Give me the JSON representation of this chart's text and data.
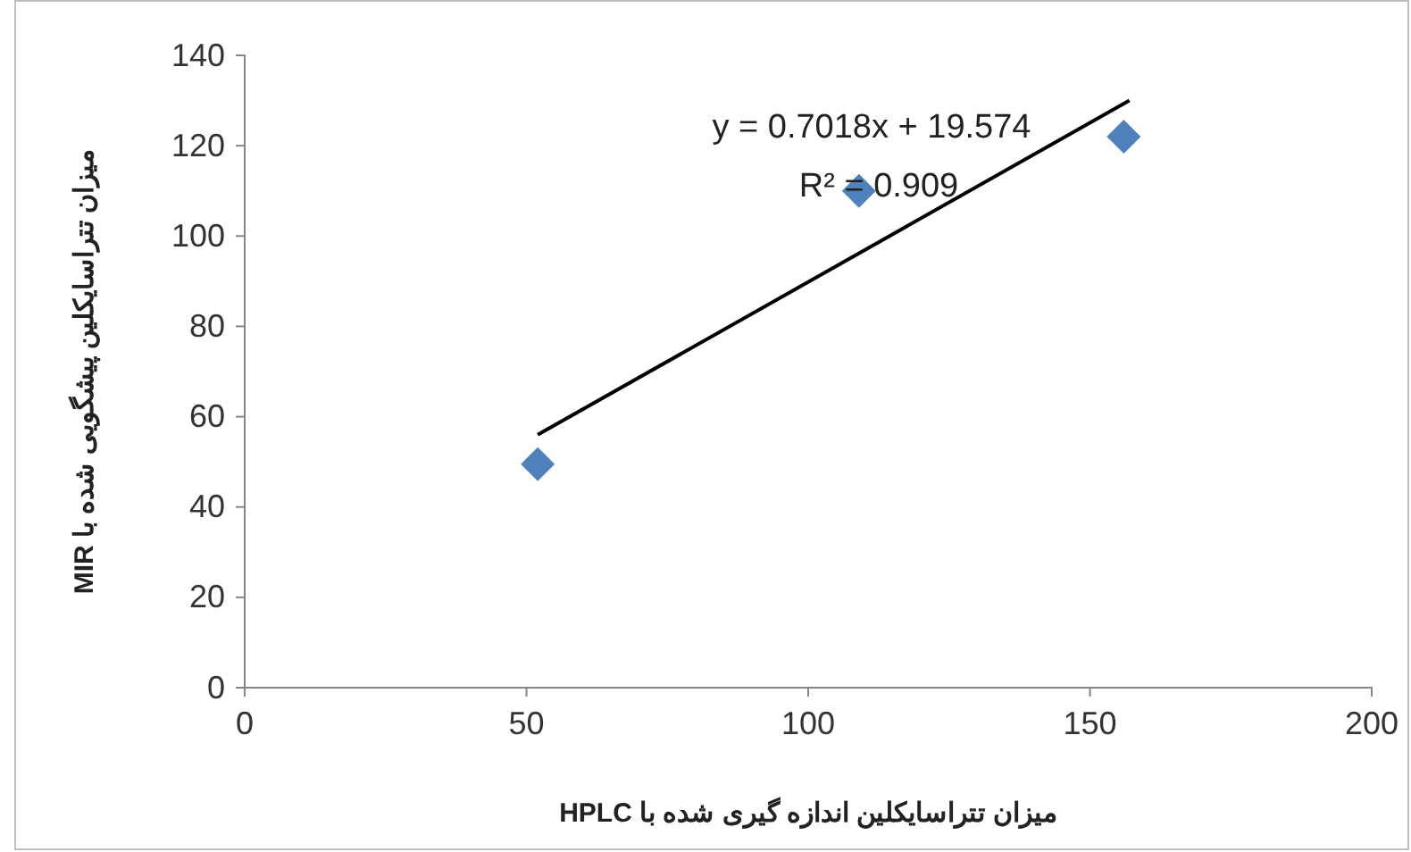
{
  "chart_data": {
    "type": "scatter",
    "xlabel": "میزان تتراسایکلین اندازه گیری شده با HPLC",
    "ylabel": "میزان تتراسایکلین پیشگویی شده با MIR",
    "annotations": [
      "y = 0.7018x + 19.574",
      "R² = 0.909"
    ],
    "series": [
      {
        "color": "#4f81bd",
        "marker": "diamond",
        "x": [
          52,
          109,
          156
        ],
        "values": [
          49.5,
          110,
          122
        ]
      },
      {
        "type": "line",
        "color": "#000000",
        "x": [
          52,
          157
        ],
        "values": [
          56,
          130
        ]
      }
    ],
    "xlim": [
      0,
      200
    ],
    "xticks": [
      0,
      50,
      100,
      150,
      200
    ],
    "ylim": [
      0,
      140
    ],
    "yticks": [
      0,
      20,
      40,
      60,
      80,
      100,
      120,
      140
    ],
    "grid": false
  }
}
